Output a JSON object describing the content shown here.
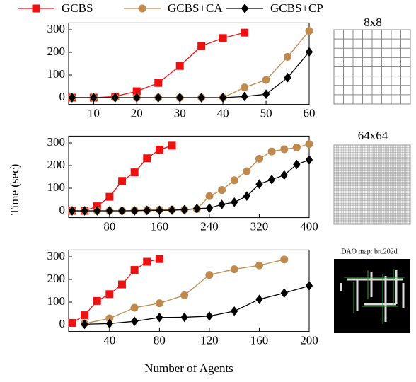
{
  "chart_data": [
    {
      "type": "line",
      "xlim": [
        4.2,
        60
      ],
      "ylim": [
        -30,
        330
      ],
      "xticks": [
        10,
        20,
        30,
        40,
        50,
        60
      ],
      "yticks": [
        0,
        100,
        200,
        300
      ],
      "series": [
        {
          "name": "GCBS",
          "color": "#ee1111",
          "marker": "square",
          "x": [
            5,
            10,
            15,
            20,
            25,
            30,
            35,
            40,
            45
          ],
          "values": [
            0,
            0,
            5,
            28,
            65,
            140,
            228,
            263,
            287
          ]
        },
        {
          "name": "GCBS+CA",
          "color": "#c08a4e",
          "marker": "circle",
          "x": [
            5,
            10,
            15,
            20,
            25,
            30,
            35,
            40,
            45,
            50,
            55,
            60
          ],
          "values": [
            0,
            0,
            0,
            0,
            0,
            0,
            0,
            0,
            45,
            78,
            180,
            295
          ]
        },
        {
          "name": "GCBS+CP",
          "color": "#000000",
          "marker": "diamond",
          "x": [
            5,
            10,
            15,
            20,
            25,
            30,
            35,
            40,
            45,
            50,
            55,
            60
          ],
          "values": [
            0,
            0,
            0,
            0,
            0,
            0,
            0,
            0,
            5,
            15,
            88,
            202
          ]
        }
      ]
    },
    {
      "type": "line",
      "ylabel": "Time (sec)",
      "xlim": [
        14.3,
        400
      ],
      "ylim": [
        -30,
        330
      ],
      "xticks": [
        80,
        160,
        240,
        320,
        400
      ],
      "yticks": [
        0,
        100,
        200,
        300
      ],
      "series": [
        {
          "name": "GCBS",
          "color": "#ee1111",
          "marker": "square",
          "x": [
            20,
            40,
            60,
            80,
            100,
            120,
            140,
            160,
            180
          ],
          "values": [
            0,
            0,
            20,
            62,
            132,
            170,
            232,
            270,
            288
          ]
        },
        {
          "name": "GCBS+CA",
          "color": "#c08a4e",
          "marker": "circle",
          "x": [
            20,
            40,
            60,
            80,
            100,
            120,
            140,
            160,
            180,
            200,
            220,
            240,
            260,
            280,
            300,
            320,
            340,
            360,
            380,
            400
          ],
          "values": [
            0,
            0,
            0,
            0,
            0,
            2,
            4,
            5,
            5,
            5,
            8,
            65,
            92,
            135,
            175,
            230,
            262,
            272,
            280,
            295
          ]
        },
        {
          "name": "GCBS+CP",
          "color": "#000000",
          "marker": "diamond",
          "x": [
            20,
            40,
            60,
            80,
            100,
            120,
            140,
            160,
            180,
            200,
            220,
            240,
            260,
            280,
            300,
            320,
            340,
            360,
            380,
            400
          ],
          "values": [
            0,
            0,
            0,
            0,
            0,
            0,
            2,
            2,
            3,
            5,
            10,
            12,
            28,
            38,
            65,
            118,
            138,
            158,
            205,
            225
          ]
        }
      ]
    },
    {
      "type": "line",
      "xlabel": "Number of Agents",
      "xlim": [
        7.2,
        200
      ],
      "ylim": [
        -30,
        330
      ],
      "xticks": [
        40,
        80,
        120,
        160,
        200
      ],
      "yticks": [
        0,
        100,
        200,
        300
      ],
      "series": [
        {
          "name": "GCBS",
          "color": "#ee1111",
          "marker": "square",
          "x": [
            10,
            20,
            30,
            40,
            50,
            60,
            70,
            80
          ],
          "values": [
            8,
            42,
            105,
            135,
            178,
            242,
            278,
            290
          ]
        },
        {
          "name": "GCBS+CA",
          "color": "#c08a4e",
          "marker": "circle",
          "x": [
            20,
            40,
            60,
            80,
            100,
            120,
            140,
            160,
            180
          ],
          "values": [
            5,
            28,
            75,
            95,
            130,
            220,
            245,
            262,
            288
          ]
        },
        {
          "name": "GCBS+CP",
          "color": "#000000",
          "marker": "diamond",
          "x": [
            20,
            40,
            60,
            80,
            100,
            120,
            140,
            160,
            180,
            200
          ],
          "values": [
            2,
            5,
            15,
            32,
            33,
            38,
            60,
            112,
            140,
            172
          ]
        }
      ]
    }
  ],
  "maps": [
    {
      "title": "8x8"
    },
    {
      "title": "64x64"
    },
    {
      "title": "DAO map: brc202d"
    }
  ]
}
